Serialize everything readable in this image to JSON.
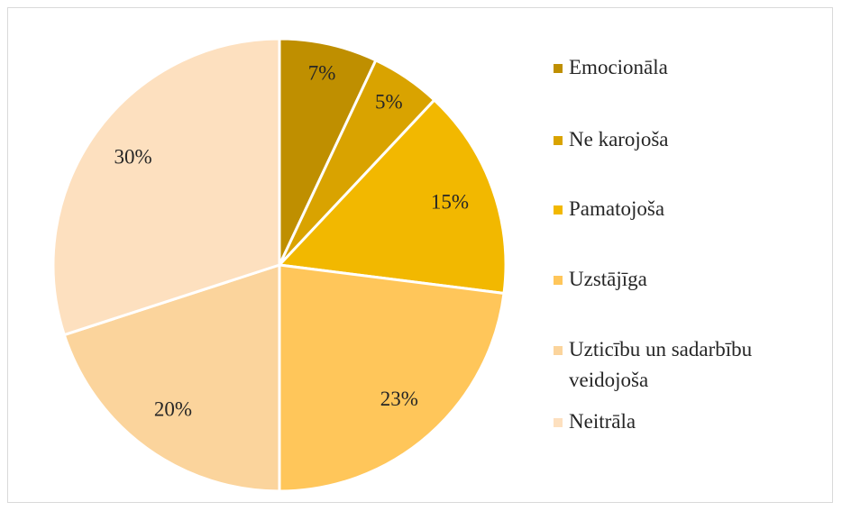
{
  "chart_data": {
    "type": "pie",
    "categories": [
      "Emocionāla",
      "Ne karojoša",
      "Pamatojoša",
      "Uzstājīga",
      "Uzticību un sadarbību veidojoša",
      "Neitrāla"
    ],
    "values": [
      7,
      5,
      15,
      23,
      20,
      30
    ],
    "value_labels": [
      "7%",
      "5%",
      "15%",
      "23%",
      "20%",
      "30%"
    ],
    "colors": [
      "#bf8f00",
      "#d9a300",
      "#f2b800",
      "#ffc65a",
      "#fbd49c",
      "#fde0bf"
    ],
    "legend": "right"
  }
}
